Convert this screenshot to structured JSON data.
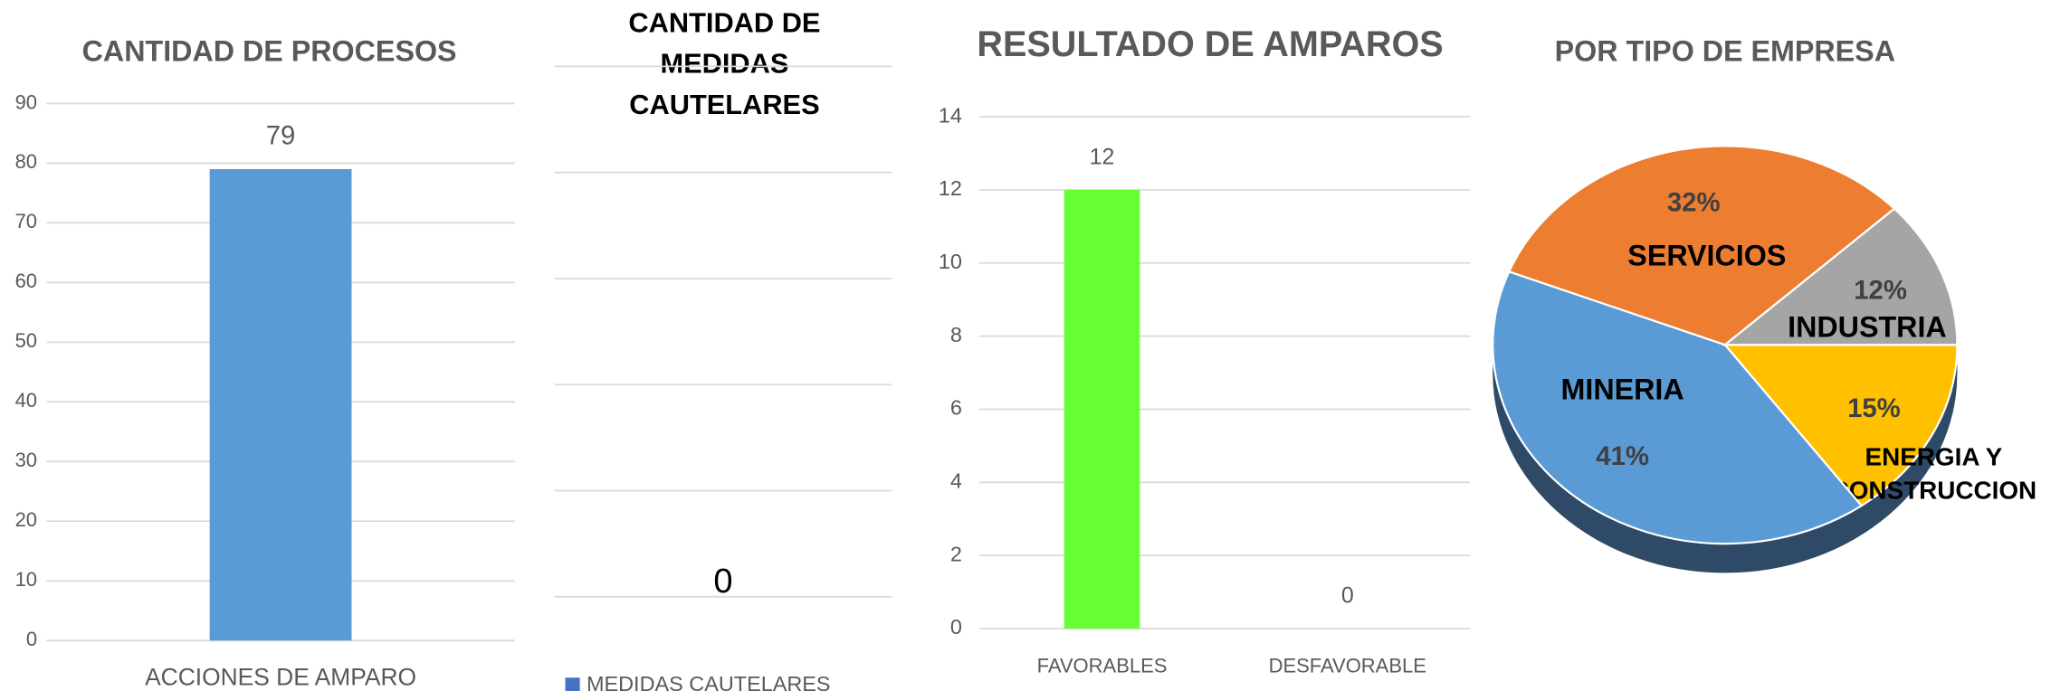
{
  "chart_data": [
    {
      "type": "bar",
      "title": "CANTIDAD DE PROCESOS",
      "categories": [
        "ACCIONES DE AMPARO"
      ],
      "values": [
        79
      ],
      "color": "#5b9bd5",
      "ylim": [
        0,
        90
      ],
      "yticks": [
        0,
        10,
        20,
        30,
        40,
        50,
        60,
        70,
        80,
        90
      ],
      "grid": true
    },
    {
      "type": "bar",
      "title": "CANTIDAD DE MEDIDAS CAUTELARES",
      "categories": [
        null
      ],
      "series": [
        {
          "name": "MEDIDAS CAUTELARES",
          "color": "#4472c4",
          "values": [
            0
          ]
        }
      ],
      "ylim": [
        0,
        5
      ],
      "yticks": [
        0,
        1,
        2,
        3,
        4,
        5
      ],
      "ytick_labels": false,
      "grid": true
    },
    {
      "type": "bar",
      "title": "RESULTADO DE AMPAROS",
      "categories": [
        "FAVORABLES",
        "DESFAVORABLE"
      ],
      "values": [
        12,
        0
      ],
      "color": "#66ff33",
      "ylim": [
        0,
        14
      ],
      "yticks": [
        0,
        2,
        4,
        6,
        8,
        10,
        12,
        14
      ],
      "grid": true
    },
    {
      "type": "pie",
      "title": "POR TIPO DE EMPRESA",
      "categories": [
        "ENERGIA Y CONSTRUCCION",
        "MINERIA",
        "SERVICIOS",
        "INDUSTRIA"
      ],
      "values": [
        15,
        41,
        32,
        12
      ],
      "value_labels": [
        "15%",
        "41%",
        "32%",
        "12%"
      ],
      "colors": [
        "#ffc000",
        "#5b9bd5",
        "#ed7d31",
        "#a5a5a5"
      ]
    }
  ]
}
